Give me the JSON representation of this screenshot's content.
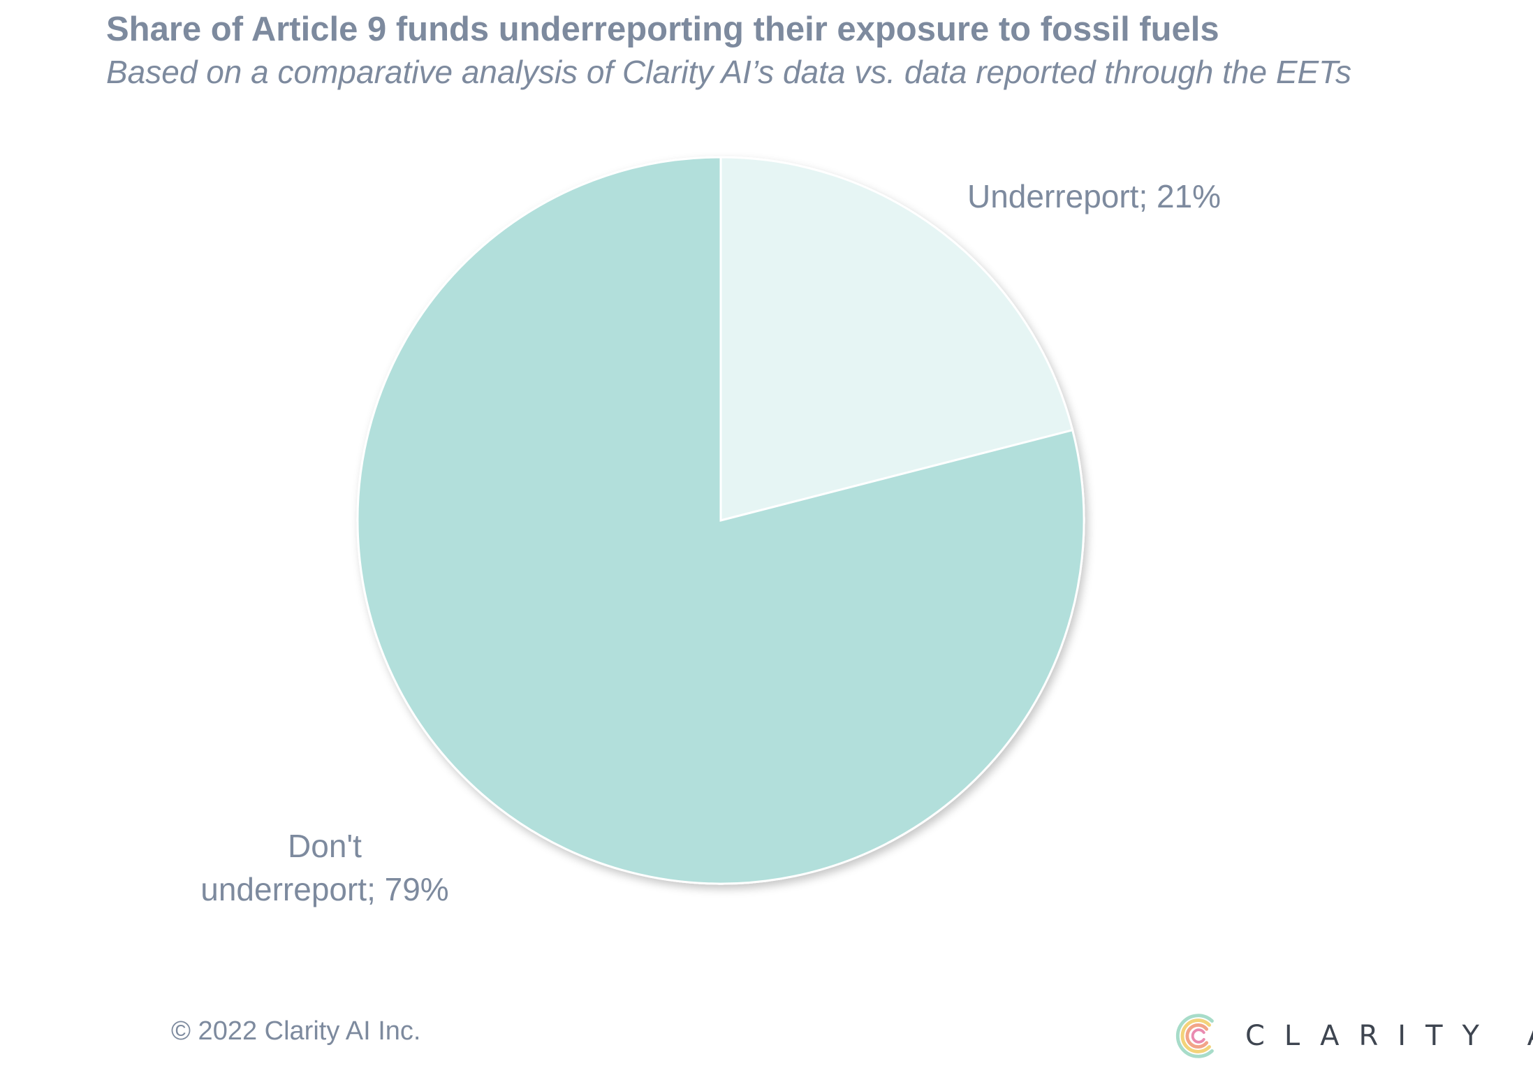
{
  "chart_data": {
    "type": "pie",
    "title": "Share of Article 9 funds underreporting their exposure to fossil fuels",
    "subtitle": "Based on a comparative analysis of Clarity AI’s data vs. data reported through the EETs",
    "slices": [
      {
        "label": "Underreport",
        "value": 21,
        "display": "Underreport; 21%",
        "color": "#e6f5f4"
      },
      {
        "label": "Don't underreport",
        "value": 79,
        "display_lines": [
          "Don't",
          "underreport; 79%"
        ],
        "color": "#b2dfdb"
      }
    ],
    "edge_color": "#ffffff"
  },
  "footer": {
    "copyright": "© 2022 Clarity AI Inc.",
    "logo_text": "CLARITY AI",
    "logo_icon": "clarity-ai-c-icon"
  }
}
